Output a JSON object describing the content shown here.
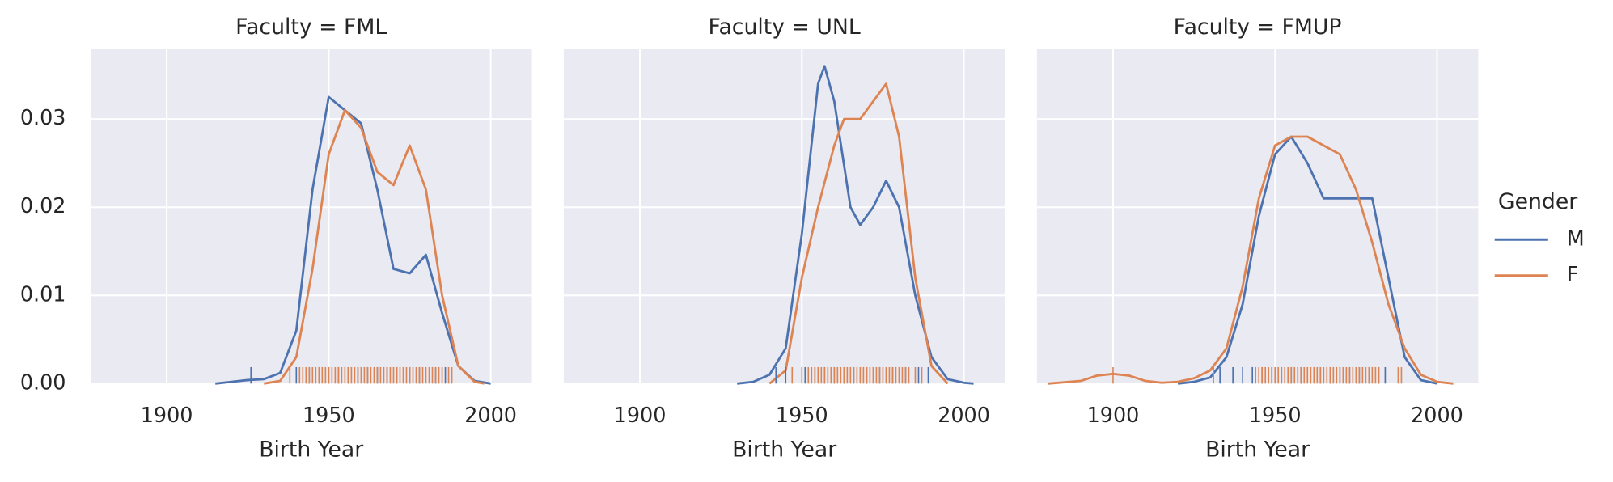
{
  "chart_data": [
    {
      "type": "line",
      "title": "Faculty = FML",
      "x_label": "Birth Year",
      "xlim": [
        1876.5,
        2012.7
      ],
      "ylim": [
        0,
        0.0379
      ],
      "xticks": [
        1900,
        1950,
        2000
      ],
      "yticks": [
        {
          "value": 0,
          "label": "0.00"
        },
        0.01,
        0.02,
        0.03
      ],
      "grid": true,
      "legend_title": "Gender",
      "legend_position": "right",
      "series": [
        {
          "name": "M",
          "color": "#4c72b0",
          "x": [
            1915,
            1920,
            1925,
            1930,
            1935,
            1940,
            1945,
            1950,
            1955,
            1960,
            1965,
            1970,
            1975,
            1980,
            1985,
            1990,
            1995,
            2000
          ],
          "values": [
            0,
            0.0002,
            0.0004,
            0.0005,
            0.0012,
            0.006,
            0.022,
            0.0325,
            0.031,
            0.0295,
            0.022,
            0.013,
            0.0125,
            0.0146,
            0.008,
            0.002,
            0.0003,
            0
          ],
          "rug": [
            1926,
            1940,
            1944,
            1947,
            1950,
            1953,
            1956,
            1959,
            1962,
            1965,
            1968,
            1971,
            1975,
            1978,
            1983,
            1986
          ]
        },
        {
          "name": "F",
          "color": "#dd8452",
          "x": [
            1930,
            1935,
            1940,
            1945,
            1950,
            1955,
            1960,
            1965,
            1970,
            1975,
            1980,
            1985,
            1990,
            1995,
            1998
          ],
          "values": [
            0,
            0.0003,
            0.003,
            0.013,
            0.026,
            0.031,
            0.029,
            0.024,
            0.0225,
            0.027,
            0.022,
            0.01,
            0.002,
            0.0002,
            0
          ],
          "rug": [
            1938,
            1941,
            1942,
            1943,
            1944,
            1945,
            1946,
            1947,
            1948,
            1949,
            1950,
            1951,
            1952,
            1953,
            1954,
            1955,
            1956,
            1957,
            1958,
            1959,
            1960,
            1961,
            1962,
            1963,
            1964,
            1965,
            1966,
            1967,
            1968,
            1969,
            1970,
            1971,
            1972,
            1973,
            1974,
            1975,
            1976,
            1977,
            1978,
            1979,
            1980,
            1981,
            1982,
            1983,
            1984,
            1985,
            1987,
            1988
          ]
        }
      ]
    },
    {
      "type": "line",
      "title": "Faculty = UNL",
      "x_label": "Birth Year",
      "xlim": [
        1876.5,
        2012.7
      ],
      "ylim": [
        0,
        0.0379
      ],
      "xticks": [
        1900,
        1950,
        2000
      ],
      "yticks": [
        {
          "value": 0,
          "label": "0.00"
        },
        0.01,
        0.02,
        0.03
      ],
      "grid": true,
      "series": [
        {
          "name": "M",
          "color": "#4c72b0",
          "x": [
            1930,
            1935,
            1940,
            1945,
            1950,
            1955,
            1957,
            1960,
            1965,
            1968,
            1972,
            1976,
            1980,
            1985,
            1990,
            1995,
            2000,
            2003
          ],
          "values": [
            0,
            0.0002,
            0.001,
            0.004,
            0.017,
            0.034,
            0.036,
            0.032,
            0.02,
            0.018,
            0.02,
            0.023,
            0.02,
            0.01,
            0.003,
            0.0005,
            0.0001,
            0
          ],
          "rug": [
            1942,
            1945,
            1951,
            1954,
            1957,
            1960,
            1963,
            1966,
            1970,
            1974,
            1978,
            1982,
            1986,
            1989
          ]
        },
        {
          "name": "F",
          "color": "#dd8452",
          "x": [
            1940,
            1945,
            1950,
            1955,
            1960,
            1963,
            1968,
            1972,
            1976,
            1980,
            1985,
            1990,
            1995
          ],
          "values": [
            0,
            0.0015,
            0.012,
            0.02,
            0.027,
            0.03,
            0.03,
            0.032,
            0.034,
            0.028,
            0.012,
            0.002,
            0
          ],
          "rug": [
            1947,
            1950,
            1952,
            1953,
            1954,
            1955,
            1956,
            1957,
            1958,
            1959,
            1960,
            1961,
            1962,
            1963,
            1964,
            1965,
            1966,
            1967,
            1968,
            1969,
            1970,
            1971,
            1972,
            1973,
            1974,
            1975,
            1976,
            1977,
            1978,
            1979,
            1980,
            1981,
            1982,
            1983,
            1985,
            1987
          ]
        }
      ]
    },
    {
      "type": "line",
      "title": "Faculty = FMUP",
      "x_label": "Birth Year",
      "xlim": [
        1876.5,
        2012.7
      ],
      "ylim": [
        0,
        0.0379
      ],
      "xticks": [
        1900,
        1950,
        2000
      ],
      "yticks": [
        {
          "value": 0,
          "label": "0.00"
        },
        0.01,
        0.02,
        0.03
      ],
      "grid": true,
      "series": [
        {
          "name": "M",
          "color": "#4c72b0",
          "x": [
            1920,
            1925,
            1930,
            1935,
            1940,
            1945,
            1950,
            1955,
            1960,
            1965,
            1970,
            1975,
            1980,
            1985,
            1990,
            1995,
            2000
          ],
          "values": [
            0,
            0.0002,
            0.0007,
            0.003,
            0.009,
            0.019,
            0.026,
            0.028,
            0.025,
            0.021,
            0.021,
            0.021,
            0.021,
            0.012,
            0.003,
            0.0004,
            0
          ],
          "rug": [
            1933,
            1937,
            1940,
            1943,
            1946,
            1949,
            1952,
            1955,
            1958,
            1961,
            1964,
            1967,
            1970,
            1973,
            1976,
            1979,
            1982,
            1984
          ]
        },
        {
          "name": "F",
          "color": "#dd8452",
          "x": [
            1880,
            1890,
            1895,
            1900,
            1905,
            1910,
            1915,
            1920,
            1925,
            1930,
            1935,
            1940,
            1945,
            1950,
            1955,
            1960,
            1965,
            1970,
            1975,
            1980,
            1985,
            1990,
            1995,
            2000,
            2005
          ],
          "values": [
            0,
            0.0003,
            0.0009,
            0.0011,
            0.0009,
            0.0003,
            0.0001,
            0.0002,
            0.0006,
            0.0015,
            0.004,
            0.011,
            0.021,
            0.027,
            0.028,
            0.028,
            0.027,
            0.026,
            0.022,
            0.016,
            0.009,
            0.004,
            0.001,
            0.0002,
            0
          ],
          "rug": [
            1900,
            1931,
            1944,
            1945,
            1946,
            1947,
            1948,
            1949,
            1950,
            1951,
            1952,
            1953,
            1954,
            1955,
            1956,
            1957,
            1958,
            1959,
            1960,
            1961,
            1962,
            1963,
            1964,
            1965,
            1966,
            1967,
            1968,
            1969,
            1970,
            1971,
            1972,
            1973,
            1974,
            1975,
            1976,
            1977,
            1978,
            1979,
            1980,
            1981,
            1982,
            1988,
            1989
          ]
        }
      ]
    }
  ]
}
